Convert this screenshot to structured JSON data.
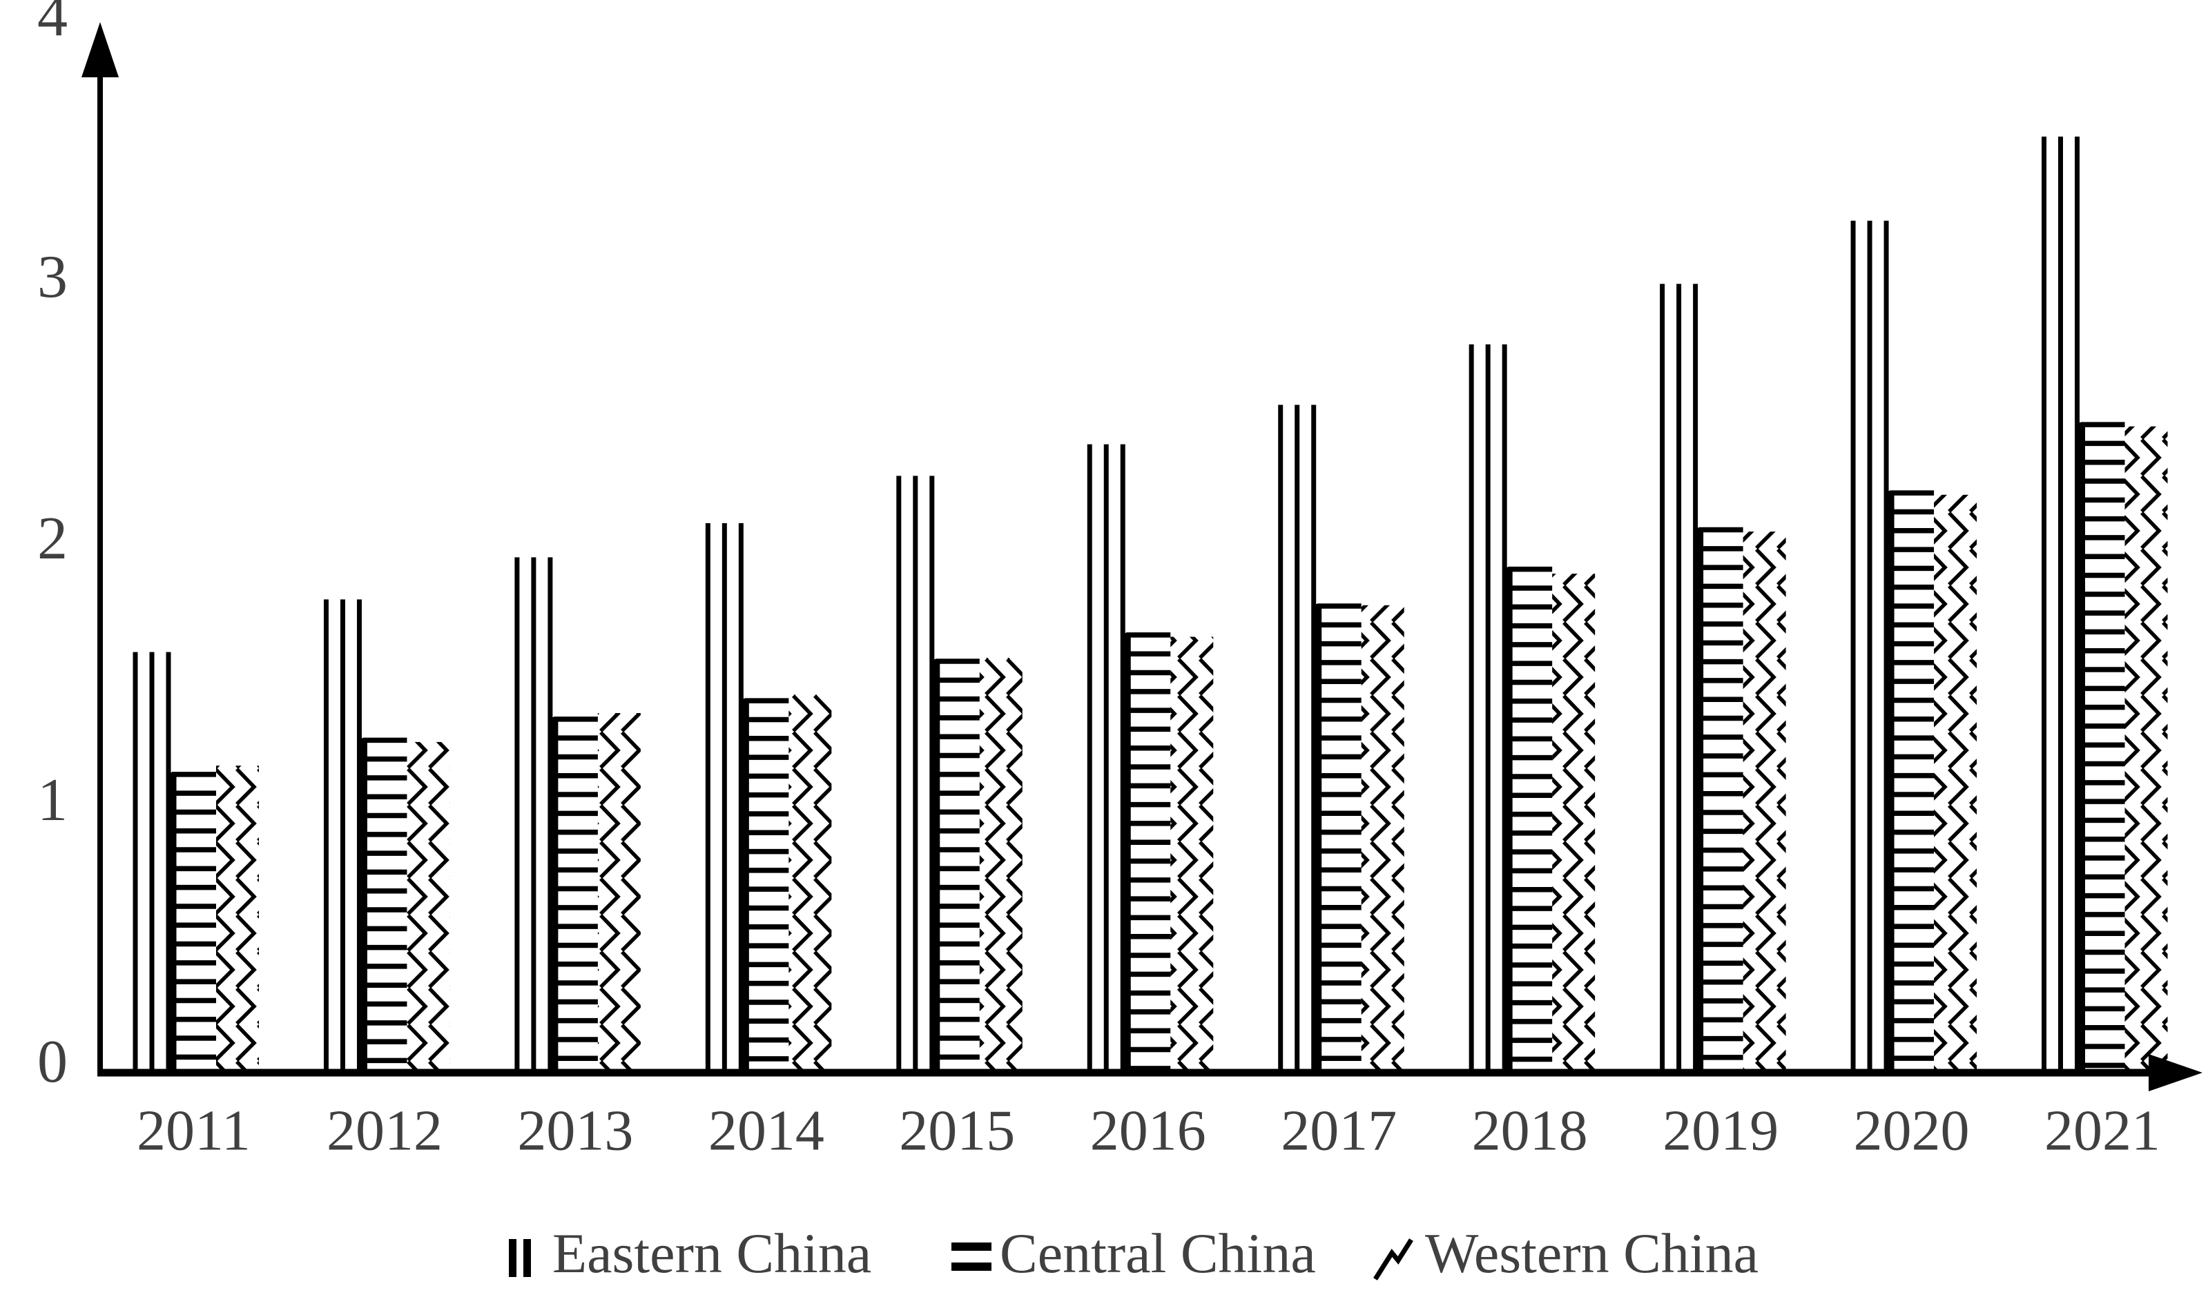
{
  "figure": {
    "description": "Grouped bar chart, black patterned bars on white, no gridlines, arrowed axes",
    "colors": {
      "bar": "#000000",
      "axis": "#000000",
      "label_text": "#404040",
      "background": "#ffffff"
    }
  },
  "chart_data": {
    "type": "bar",
    "title": "",
    "xlabel": "",
    "ylabel": "",
    "ylim": [
      0,
      4
    ],
    "yticks": [
      "0",
      "1",
      "2",
      "3",
      "4"
    ],
    "grid": false,
    "legend_position": "bottom",
    "categories": [
      "2011",
      "2012",
      "2013",
      "2014",
      "2015",
      "2016",
      "2017",
      "2018",
      "2019",
      "2020",
      "2021"
    ],
    "series": [
      {
        "name": "Eastern China",
        "pattern": "vertical-stripes",
        "marker_icon": "vertical-bars-icon",
        "values": [
          1.61,
          1.81,
          1.97,
          2.1,
          2.28,
          2.4,
          2.55,
          2.78,
          3.01,
          3.25,
          3.57
        ]
      },
      {
        "name": "Central China",
        "pattern": "horizontal-stripes",
        "marker_icon": "horizontal-bars-icon",
        "values": [
          1.15,
          1.28,
          1.36,
          1.43,
          1.58,
          1.68,
          1.79,
          1.93,
          2.08,
          2.22,
          2.48
        ]
      },
      {
        "name": "Western China",
        "pattern": "chevron-zigzag-hatch",
        "marker_icon": "zigzag-icon",
        "values": [
          1.17,
          1.26,
          1.37,
          1.44,
          1.58,
          1.66,
          1.78,
          1.9,
          2.06,
          2.2,
          2.46
        ]
      }
    ]
  }
}
